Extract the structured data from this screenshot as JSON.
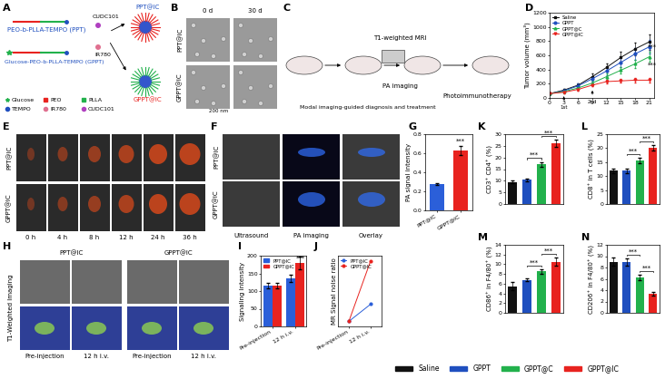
{
  "panel_labels": [
    "A",
    "B",
    "C",
    "D",
    "E",
    "F",
    "G",
    "H",
    "I",
    "J",
    "K",
    "L",
    "M",
    "N"
  ],
  "A": {
    "chains": [
      "PEO-b-PLLA-TEMPO (PPT)",
      "Glucose-PEO-b-PLLA-TEMPO (GPPT)"
    ],
    "drugs": [
      "CUDC101",
      "IR780"
    ],
    "products": [
      "PPT@IC",
      "GPPT@IC"
    ],
    "legend": [
      "Glucose",
      "PEO",
      "PLLA",
      "TEMPO",
      "IR780",
      "CUDC101"
    ]
  },
  "B": {
    "columns": [
      "0 d",
      "30 d"
    ],
    "rows": [
      "PPT@IC",
      "GPPT@IC"
    ],
    "scale_bar": "200 nm"
  },
  "C": {
    "texts": [
      "Modal imaging-guided diagnosis and treatment",
      "T1-weighted MRI",
      "PA imaging",
      "Photoimmunotherapy"
    ]
  },
  "E": {
    "rows": [
      "PPT@IC",
      "GPPT@IC"
    ],
    "columns": [
      "0 h",
      "4 h",
      "8 h",
      "12 h",
      "24 h",
      "36 h"
    ]
  },
  "F": {
    "rows": [
      "PPT@IC",
      "GPPT@IC"
    ],
    "columns": [
      "Ultrasound",
      "PA imaging",
      "Overlay"
    ]
  },
  "H": {
    "title": "T1-Weighted Imaging",
    "groups": [
      "PPT@IC",
      "GPPT@IC"
    ],
    "columns": [
      "Pre-injection",
      "12 h i.v."
    ]
  },
  "shared_legend": {
    "names": [
      "Saline",
      "GPPT",
      "GPPT@C",
      "GPPT@IC"
    ],
    "colors": [
      "#111111",
      "#1f4fbf",
      "#22b14c",
      "#e8231f"
    ]
  },
  "chart_data": [
    {
      "panel": "D",
      "type": "line",
      "ylabel": "Tumor volume (mm³)",
      "x": [
        0,
        3,
        6,
        9,
        12,
        15,
        18,
        21
      ],
      "xlim": [
        0,
        22
      ],
      "xticks": [
        0,
        3,
        6,
        9,
        12,
        15,
        18,
        21
      ],
      "ylim": [
        0,
        1200
      ],
      "yticks": [
        0,
        200,
        400,
        600,
        800,
        1000,
        1200
      ],
      "legend": "upper left",
      "series": [
        {
          "name": "Saline",
          "color": "#111111",
          "marker": "square",
          "line_style": "solid",
          "values": [
            60,
            110,
            180,
            300,
            430,
            570,
            690,
            790
          ],
          "errors": [
            10,
            20,
            30,
            50,
            60,
            80,
            90,
            110
          ]
        },
        {
          "name": "GPPT",
          "color": "#1f4fbf",
          "marker": "circle",
          "line_style": "solid",
          "values": [
            60,
            100,
            170,
            270,
            380,
            500,
            620,
            720
          ],
          "errors": [
            10,
            20,
            30,
            40,
            60,
            70,
            80,
            100
          ]
        },
        {
          "name": "GPPT@C",
          "color": "#22b14c",
          "marker": "triangle_up",
          "line_style": "solid",
          "values": [
            60,
            90,
            140,
            210,
            300,
            390,
            480,
            580
          ],
          "errors": [
            10,
            15,
            20,
            30,
            40,
            50,
            60,
            70
          ]
        },
        {
          "name": "GPPT@IC",
          "color": "#e8231f",
          "marker": "triangle_down",
          "line_style": "solid",
          "values": [
            60,
            80,
            120,
            180,
            230,
            240,
            250,
            250
          ],
          "errors": [
            10,
            10,
            15,
            20,
            25,
            25,
            30,
            30
          ]
        }
      ],
      "arrows": [
        {
          "text": "1st",
          "x": 3,
          "y": 60
        },
        {
          "text": "2nd",
          "x": 9,
          "y": 140
        }
      ],
      "annotations": [
        {
          "text": "***",
          "x": 21.6,
          "y": 680
        },
        {
          "text": "***",
          "x": 21.6,
          "y": 420
        }
      ]
    },
    {
      "panel": "G",
      "type": "bar",
      "ylabel": "PA signal intensity",
      "categories": [
        "PPT@IC",
        "GPPT@IC"
      ],
      "values": [
        0.28,
        0.63
      ],
      "errors": [
        0.01,
        0.05
      ],
      "colors": [
        "#2b5fd9",
        "#e8231f"
      ],
      "ylim": [
        0,
        0.8
      ],
      "yticks": [
        {
          "value": 0,
          "label": "0.0"
        },
        {
          "value": 0.2,
          "label": "0.2"
        },
        {
          "value": 0.4,
          "label": "0.4"
        },
        {
          "value": 0.6,
          "label": "0.6"
        },
        {
          "value": 0.8,
          "label": "0.8"
        }
      ],
      "annotations": [
        {
          "text": "***",
          "x": 1,
          "y": 0.7
        }
      ]
    },
    {
      "panel": "I",
      "type": "bar",
      "ylabel": "Signaling intensity",
      "categories": [
        "Pre-injection",
        "12 h i.v."
      ],
      "ylim": [
        0,
        200
      ],
      "yticks": [
        0,
        50,
        100,
        150,
        200
      ],
      "legend": "upper left",
      "series": [
        {
          "name": "PPT@IC",
          "color": "#2b5fd9",
          "values": [
            115,
            135
          ],
          "errors": [
            8,
            10
          ]
        },
        {
          "name": "GPPT@IC",
          "color": "#e8231f",
          "values": [
            115,
            180
          ],
          "errors": [
            8,
            18
          ]
        }
      ],
      "annotations": [
        {
          "text": "***",
          "x": 1.25,
          "y": 185
        }
      ]
    },
    {
      "panel": "J",
      "type": "line",
      "ylabel": "MR Signal noise ratio",
      "categories": [
        "Pre-injection",
        "12 h i.v."
      ],
      "ylim": [
        0.95,
        1.65
      ],
      "tick_labels": "x",
      "legend": "upper left",
      "series": [
        {
          "name": "PPT@IC",
          "color": "#2b5fd9",
          "marker": "circle",
          "line_style": "solid",
          "values": [
            1.0,
            1.17
          ]
        },
        {
          "name": "GPPT@IC",
          "color": "#e8231f",
          "marker": "circle",
          "line_style": "solid",
          "values": [
            1.0,
            1.6
          ]
        }
      ]
    },
    {
      "panel": "K",
      "type": "bar",
      "ylabel": "CD3⁺ CD4⁺ (%)",
      "tick_labels": "y",
      "categories": [
        "Saline",
        "GPPT",
        "GPPT@C",
        "GPPT@IC"
      ],
      "values": [
        9.5,
        10.5,
        17,
        26
      ],
      "errors": [
        0.5,
        0.6,
        1,
        1.5
      ],
      "colors": [
        "#111111",
        "#1f4fbf",
        "#22b14c",
        "#e8231f"
      ],
      "ylim": [
        0,
        30
      ],
      "yticks": [
        0,
        5,
        10,
        15,
        20,
        25,
        30
      ],
      "significance": [
        {
          "from": 1,
          "to": 2,
          "text": "***"
        },
        {
          "from": 2,
          "to": 3,
          "text": "***"
        }
      ]
    },
    {
      "panel": "L",
      "type": "bar",
      "ylabel": "CD8⁺ in T cells (%)",
      "tick_labels": "y",
      "categories": [
        "Saline",
        "GPPT",
        "GPPT@C",
        "GPPT@IC"
      ],
      "values": [
        12,
        12,
        15.5,
        20
      ],
      "errors": [
        0.8,
        0.8,
        1,
        1
      ],
      "colors": [
        "#111111",
        "#1f4fbf",
        "#22b14c",
        "#e8231f"
      ],
      "ylim": [
        0,
        25
      ],
      "yticks": [
        0,
        5,
        10,
        15,
        20,
        25
      ],
      "significance": [
        {
          "from": 1,
          "to": 2,
          "text": "***"
        },
        {
          "from": 2,
          "to": 3,
          "text": "***"
        }
      ]
    },
    {
      "panel": "M",
      "type": "bar",
      "ylabel": "CD86⁺ in F4/80⁺ (%)",
      "tick_labels": "y",
      "categories": [
        "Saline",
        "GPPT",
        "GPPT@C",
        "GPPT@IC"
      ],
      "values": [
        5.5,
        6.8,
        8.5,
        10.5
      ],
      "errors": [
        0.8,
        0.3,
        0.4,
        0.8
      ],
      "colors": [
        "#111111",
        "#1f4fbf",
        "#22b14c",
        "#e8231f"
      ],
      "ylim": [
        0,
        14
      ],
      "yticks": [
        0,
        2,
        4,
        6,
        8,
        10,
        12,
        14
      ],
      "significance": [
        {
          "from": 1,
          "to": 2,
          "text": "***"
        },
        {
          "from": 2,
          "to": 3,
          "text": "***"
        }
      ]
    },
    {
      "panel": "N",
      "type": "bar",
      "ylabel": "CD206⁺ in F4/80⁺ (%)",
      "tick_labels": "y",
      "categories": [
        "Saline",
        "GPPT",
        "GPPT@C",
        "GPPT@IC"
      ],
      "values": [
        9,
        9,
        6.2,
        3.4
      ],
      "errors": [
        0.7,
        0.6,
        0.5,
        0.3
      ],
      "colors": [
        "#111111",
        "#1f4fbf",
        "#22b14c",
        "#e8231f"
      ],
      "ylim": [
        0,
        12
      ],
      "yticks": [
        0,
        2,
        4,
        6,
        8,
        10,
        12
      ],
      "significance": [
        {
          "from": 1,
          "to": 2,
          "text": "***"
        },
        {
          "from": 2,
          "to": 3,
          "text": "***"
        }
      ]
    }
  ]
}
